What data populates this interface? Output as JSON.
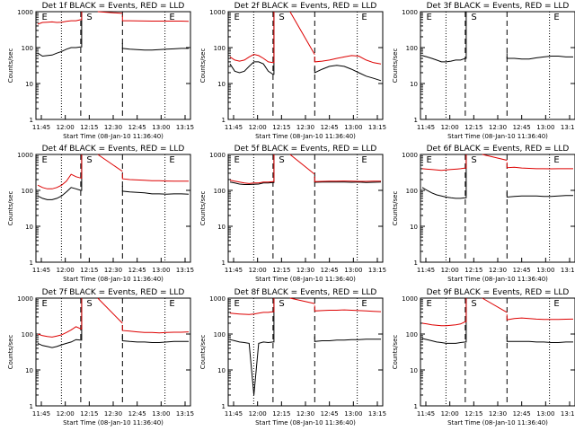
{
  "chart_data": [
    {
      "type": "line",
      "title": "Det 1f BLACK = Events, RED = LLD",
      "ylabel": "Counts/sec",
      "xlabel": "Start Time (08-Jan-10 11:36:40)",
      "yscale": "log",
      "ylim": [
        1,
        1000
      ],
      "x_ticks": [
        "11:45",
        "12:00",
        "12:15",
        "12:30",
        "12:45",
        "13:00",
        "13:15"
      ],
      "y_ticks": [
        "1",
        "10",
        "100",
        "1000"
      ],
      "markers": [
        "E",
        "S",
        "E"
      ],
      "series": [
        {
          "name": "BLACK",
          "color": "#000000",
          "values": [
            70,
            58,
            60,
            62,
            70,
            78,
            90,
            100,
            100,
            105,
            95,
            90,
            88,
            85,
            85,
            88,
            90,
            92,
            95,
            95
          ]
        },
        {
          "name": "RED",
          "color": "#dd0000",
          "values": [
            450,
            500,
            510,
            520,
            500,
            510,
            540,
            560,
            560,
            600,
            560,
            560,
            555,
            550,
            545,
            545,
            545,
            545,
            545,
            540
          ]
        }
      ]
    },
    {
      "type": "line",
      "title": "Det 2f BLACK = Events, RED = LLD",
      "ylabel": "Counts/sec",
      "xlabel": "Start Time (08-Jan-10 11:36:40)",
      "yscale": "log",
      "ylim": [
        1,
        1000
      ],
      "x_ticks": [
        "11:45",
        "12:00",
        "12:15",
        "12:30",
        "12:45",
        "13:00",
        "13:15"
      ],
      "y_ticks": [
        "1",
        "10",
        "100",
        "1000"
      ],
      "markers": [
        "E",
        "S",
        "E"
      ],
      "series": [
        {
          "name": "BLACK",
          "color": "#000000",
          "values": [
            35,
            22,
            20,
            22,
            30,
            40,
            40,
            35,
            22,
            18,
            20,
            25,
            30,
            32,
            30,
            25,
            20,
            16,
            14,
            12
          ]
        },
        {
          "name": "RED",
          "color": "#dd0000",
          "values": [
            55,
            45,
            42,
            45,
            55,
            65,
            60,
            50,
            40,
            38,
            40,
            42,
            45,
            50,
            55,
            60,
            58,
            45,
            38,
            35
          ]
        }
      ]
    },
    {
      "type": "line",
      "title": "Det 3f BLACK = Events, RED = LLD",
      "ylabel": "Counts/sec",
      "xlabel": "Start Time (08-Jan-10 11:36:40)",
      "yscale": "log",
      "ylim": [
        1,
        1000
      ],
      "x_ticks": [
        "11:45",
        "12:00",
        "12:15",
        "12:30",
        "12:45",
        "13:00",
        "13:15"
      ],
      "y_ticks": [
        "1",
        "10",
        "100",
        "1000"
      ],
      "markers": [
        "E",
        "S",
        "E"
      ],
      "series": [
        {
          "name": "BLACK",
          "color": "#000000",
          "values": [
            60,
            55,
            50,
            45,
            40,
            40,
            42,
            45,
            45,
            50,
            50,
            50,
            48,
            48,
            52,
            55,
            58,
            58,
            55,
            55
          ]
        }
      ]
    },
    {
      "type": "line",
      "title": "Det 4f BLACK = Events, RED = LLD",
      "ylabel": "Counts/sec",
      "xlabel": "Start Time (08-Jan-10 11:36:40)",
      "yscale": "log",
      "ylim": [
        1,
        1000
      ],
      "x_ticks": [
        "11:45",
        "12:00",
        "12:15",
        "12:30",
        "12:45",
        "13:00",
        "13:15"
      ],
      "y_ticks": [
        "1",
        "10",
        "100",
        "1000"
      ],
      "markers": [
        "E",
        "S",
        "E"
      ],
      "series": [
        {
          "name": "BLACK",
          "color": "#000000",
          "values": [
            70,
            60,
            55,
            55,
            60,
            70,
            90,
            120,
            110,
            100,
            95,
            90,
            88,
            85,
            80,
            80,
            78,
            80,
            80,
            78
          ]
        },
        {
          "name": "RED",
          "color": "#dd0000",
          "values": [
            140,
            120,
            110,
            110,
            120,
            140,
            180,
            280,
            240,
            220,
            210,
            200,
            195,
            190,
            185,
            185,
            182,
            180,
            180,
            180
          ]
        }
      ]
    },
    {
      "type": "line",
      "title": "Det 5f BLACK = Events, RED = LLD",
      "ylabel": "Counts/sec",
      "xlabel": "Start Time (08-Jan-10 11:36:40)",
      "yscale": "log",
      "ylim": [
        1,
        1000
      ],
      "x_ticks": [
        "11:45",
        "12:00",
        "12:15",
        "12:30",
        "12:45",
        "13:00",
        "13:15"
      ],
      "y_ticks": [
        "1",
        "10",
        "100",
        "1000"
      ],
      "markers": [
        "E",
        "S",
        "E"
      ],
      "series": [
        {
          "name": "BLACK",
          "color": "#000000",
          "values": [
            170,
            160,
            150,
            145,
            145,
            148,
            150,
            160,
            160,
            165,
            168,
            170,
            170,
            170,
            170,
            168,
            170,
            165,
            168,
            170
          ]
        },
        {
          "name": "RED",
          "color": "#dd0000",
          "values": [
            190,
            180,
            170,
            160,
            155,
            160,
            160,
            170,
            170,
            175,
            175,
            178,
            180,
            180,
            182,
            180,
            178,
            178,
            180,
            180
          ]
        }
      ]
    },
    {
      "type": "line",
      "title": "Det 6f BLACK = Events, RED = LLD",
      "ylabel": "Counts/sec",
      "xlabel": "Start Time (08-Jan-10 11:36:40)",
      "yscale": "log",
      "ylim": [
        1,
        1000
      ],
      "x_ticks": [
        "11:45",
        "12:00",
        "12:15",
        "12:30",
        "12:45",
        "13:00",
        "13:15"
      ],
      "y_ticks": [
        "1",
        "10",
        "100",
        "1000"
      ],
      "markers": [
        "E",
        "S",
        "E"
      ],
      "series": [
        {
          "name": "BLACK",
          "color": "#000000",
          "values": [
            120,
            100,
            85,
            75,
            70,
            65,
            62,
            60,
            60,
            62,
            65,
            68,
            70,
            70,
            70,
            68,
            68,
            70,
            72,
            72
          ]
        },
        {
          "name": "RED",
          "color": "#dd0000",
          "values": [
            400,
            390,
            380,
            370,
            360,
            370,
            380,
            390,
            400,
            420,
            430,
            440,
            420,
            410,
            400,
            400,
            398,
            400,
            400,
            400
          ]
        }
      ]
    },
    {
      "type": "line",
      "title": "Det 7f BLACK = Events, RED = LLD",
      "ylabel": "Counts/sec",
      "xlabel": "Start Time (08-Jan-10 11:36:40)",
      "yscale": "log",
      "ylim": [
        1,
        1000
      ],
      "x_ticks": [
        "11:45",
        "12:00",
        "12:15",
        "12:30",
        "12:45",
        "13:00",
        "13:15"
      ],
      "y_ticks": [
        "1",
        "10",
        "100",
        "1000"
      ],
      "markers": [
        "E",
        "S",
        "E"
      ],
      "series": [
        {
          "name": "BLACK",
          "color": "#000000",
          "values": [
            55,
            48,
            45,
            42,
            45,
            50,
            55,
            60,
            70,
            68,
            65,
            62,
            60,
            60,
            58,
            58,
            60,
            62,
            62,
            62
          ]
        },
        {
          "name": "RED",
          "color": "#dd0000",
          "values": [
            100,
            90,
            85,
            82,
            88,
            95,
            110,
            130,
            160,
            140,
            125,
            120,
            115,
            110,
            110,
            108,
            110,
            112,
            112,
            115
          ]
        }
      ]
    },
    {
      "type": "line",
      "title": "Det 8f BLACK = Events, RED = LLD",
      "ylabel": "Counts/sec",
      "xlabel": "Start Time (08-Jan-10 11:36:40)",
      "yscale": "log",
      "ylim": [
        1,
        1000
      ],
      "x_ticks": [
        "11:45",
        "12:00",
        "12:15",
        "12:30",
        "12:45",
        "13:00",
        "13:15"
      ],
      "y_ticks": [
        "1",
        "10",
        "100",
        "1000"
      ],
      "markers": [
        "E",
        "S",
        "E"
      ],
      "series": [
        {
          "name": "BLACK",
          "color": "#000000",
          "values": [
            70,
            65,
            60,
            58,
            55,
            2,
            55,
            60,
            58,
            60,
            62,
            65,
            65,
            68,
            68,
            70,
            70,
            72,
            72,
            72
          ]
        },
        {
          "name": "RED",
          "color": "#dd0000",
          "values": [
            380,
            370,
            360,
            355,
            350,
            360,
            380,
            400,
            400,
            420,
            440,
            450,
            460,
            460,
            470,
            460,
            450,
            440,
            430,
            420
          ]
        }
      ]
    },
    {
      "type": "line",
      "title": "Det 9f BLACK = Events, RED = LLD",
      "ylabel": "Counts/sec",
      "xlabel": "Start Time (08-Jan-10 11:36:40)",
      "yscale": "log",
      "ylim": [
        1,
        1000
      ],
      "x_ticks": [
        "11:45",
        "12:00",
        "12:15",
        "12:30",
        "12:45",
        "13:00",
        "13:15"
      ],
      "y_ticks": [
        "1",
        "10",
        "100",
        "1000"
      ],
      "markers": [
        "E",
        "S",
        "E"
      ],
      "series": [
        {
          "name": "BLACK",
          "color": "#000000",
          "values": [
            75,
            70,
            65,
            60,
            58,
            55,
            55,
            55,
            58,
            60,
            62,
            62,
            62,
            62,
            60,
            60,
            58,
            58,
            60,
            60
          ]
        },
        {
          "name": "RED",
          "color": "#dd0000",
          "values": [
            200,
            190,
            180,
            175,
            170,
            170,
            175,
            180,
            190,
            220,
            250,
            270,
            280,
            270,
            260,
            255,
            255,
            255,
            258,
            260
          ]
        }
      ]
    }
  ]
}
